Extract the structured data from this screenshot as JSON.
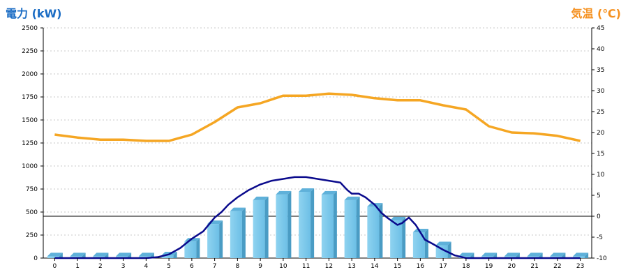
{
  "chart_data": {
    "type": "bar",
    "left_axis_title": "電力 (kW)",
    "right_axis_title": "気温 (℃)",
    "categories": [
      "0",
      "1",
      "2",
      "3",
      "4",
      "5",
      "6",
      "7",
      "8",
      "9",
      "10",
      "11",
      "12",
      "13",
      "14",
      "15",
      "16",
      "17",
      "18",
      "19",
      "20",
      "21",
      "22",
      "23"
    ],
    "y_left": {
      "min": 0,
      "max": 2500,
      "ticks": [
        0,
        250,
        500,
        750,
        1000,
        1250,
        1500,
        1750,
        2000,
        2250,
        2500
      ]
    },
    "y_right": {
      "min": -10,
      "max": 45,
      "ticks": [
        -10,
        -5,
        0,
        5,
        10,
        15,
        20,
        25,
        30,
        35,
        40,
        45
      ]
    },
    "grid": true,
    "reference_line_right_axis": 0,
    "bars": {
      "axis": "left",
      "values": [
        20,
        20,
        20,
        20,
        20,
        30,
        180,
        370,
        510,
        630,
        690,
        720,
        690,
        630,
        560,
        410,
        280,
        140,
        20,
        20,
        20,
        20,
        20,
        20
      ],
      "color": "#87ceeb"
    },
    "temperature": {
      "axis": "right",
      "color": "#f5a623",
      "values": [
        19.5,
        18.8,
        18.3,
        18.3,
        18.0,
        18.0,
        19.5,
        22.5,
        26.0,
        27.0,
        28.8,
        28.8,
        29.3,
        29.0,
        28.2,
        27.7,
        27.7,
        26.5,
        25.5,
        21.5,
        20.0,
        19.8,
        19.2,
        18.0
      ]
    },
    "power_profile": {
      "axis": "left",
      "color": "#0a0a8c",
      "x": [
        0,
        1,
        2,
        3,
        4,
        4.5,
        5,
        5.5,
        6,
        6.5,
        7,
        7.3,
        7.6,
        8,
        8.5,
        9,
        9.5,
        10,
        10.5,
        11,
        11.5,
        12,
        12.5,
        12.8,
        13,
        13.3,
        13.6,
        14,
        14.3,
        14.6,
        15,
        15.2,
        15.5,
        15.8,
        16,
        16.2,
        16.5,
        17,
        17.5,
        18,
        19,
        20,
        21,
        22,
        23
      ],
      "y": [
        0,
        0,
        0,
        0,
        0,
        10,
        40,
        110,
        210,
        290,
        440,
        500,
        580,
        660,
        740,
        800,
        840,
        860,
        880,
        880,
        860,
        840,
        820,
        740,
        700,
        700,
        660,
        580,
        490,
        430,
        360,
        380,
        440,
        360,
        280,
        200,
        160,
        90,
        30,
        0,
        0,
        0,
        0,
        0,
        0
      ]
    }
  }
}
